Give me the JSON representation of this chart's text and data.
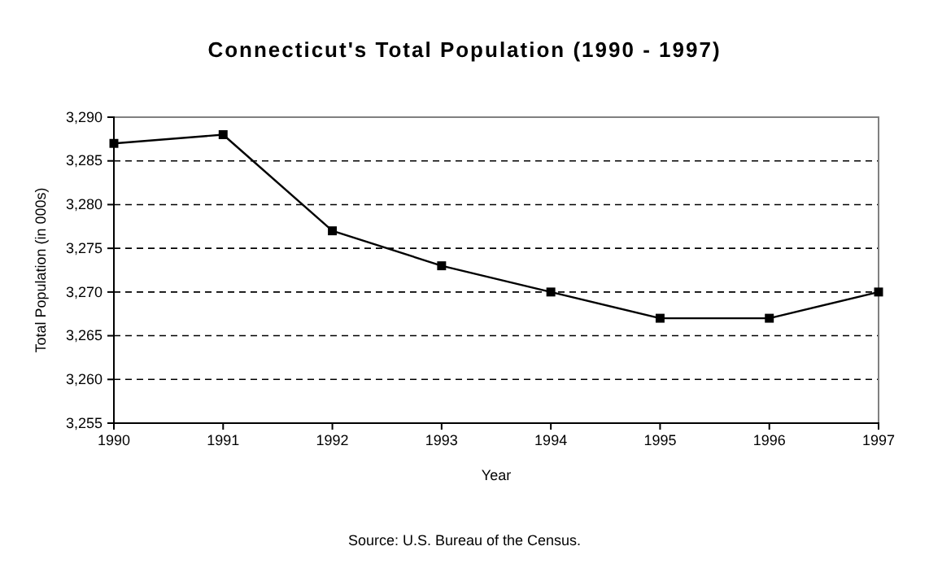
{
  "chart_data": {
    "type": "line",
    "title": "Connecticut's Total Population (1990 - 1997)",
    "xlabel": "Year",
    "ylabel": "Total Population (in 000s)",
    "annotations": [
      "Source: U.S. Bureau of the Census."
    ],
    "x": [
      1990,
      1991,
      1992,
      1993,
      1994,
      1995,
      1996,
      1997
    ],
    "series": [
      {
        "color": "#000000",
        "values": [
          3287,
          3288,
          3277,
          3273,
          3270,
          3267,
          3267,
          3270
        ]
      }
    ],
    "xlim": [
      1990,
      1997
    ],
    "xticks": [
      1990,
      1991,
      1992,
      1993,
      1994,
      1995,
      1996,
      1997
    ],
    "ylim": [
      3255,
      3290
    ],
    "yticks": [
      {
        "value": 3255,
        "label": "3,255"
      },
      {
        "value": 3260,
        "label": "3,260"
      },
      {
        "value": 3265,
        "label": "3,265"
      },
      {
        "value": 3270,
        "label": "3,270"
      },
      {
        "value": 3275,
        "label": "3,275"
      },
      {
        "value": 3280,
        "label": "3,280"
      },
      {
        "value": 3285,
        "label": "3,285"
      },
      {
        "value": 3290,
        "label": "3,290"
      }
    ],
    "grid": "y",
    "marker": "square",
    "line_style": "solid"
  }
}
